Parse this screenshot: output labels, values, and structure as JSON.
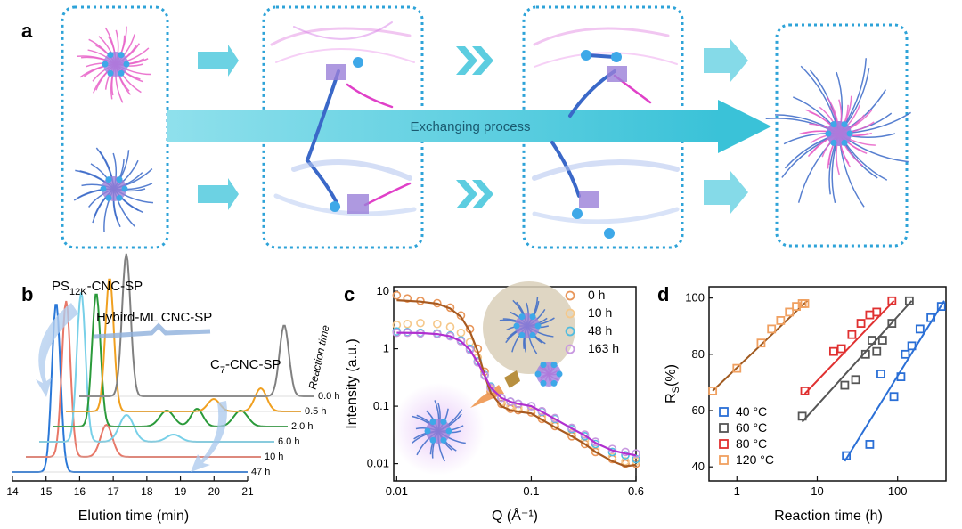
{
  "panel_a": {
    "letter": "a",
    "process_label": "Exchanging process"
  },
  "panel_b": {
    "letter": "b",
    "label_ps": "PS",
    "label_ps_sub": "12K",
    "label_ps_rest": "-CNC-SP",
    "label_hybrid": "Hybird-ML CNC-SP",
    "label_c7": "C",
    "label_c7_sub": "7",
    "label_c7_rest": "-CNC-SP",
    "xlabel": "Elution time (min)",
    "depth_label": "Reaction time",
    "xticks": [
      "14",
      "15",
      "16",
      "17",
      "18",
      "19",
      "20",
      "21"
    ],
    "traces": [
      {
        "time": "0.0 h",
        "color": "#808080"
      },
      {
        "time": "0.5 h",
        "color": "#f0a020"
      },
      {
        "time": "2.0 h",
        "color": "#2a9a3a"
      },
      {
        "time": "6.0 h",
        "color": "#78d0e8"
      },
      {
        "time": "10 h",
        "color": "#e87868"
      },
      {
        "time": "47 h",
        "color": "#2a78d8"
      }
    ]
  },
  "chart_data": [
    {
      "panel": "c",
      "type": "scatter",
      "xlabel": "Q (Å⁻¹)",
      "ylabel": "Intensity (a.u.)",
      "xscale": "log",
      "yscale": "log",
      "xlim": [
        0.0095,
        0.6
      ],
      "ylim": [
        0.005,
        12
      ],
      "xticks": [
        "0.01",
        "0.1",
        "0.6"
      ],
      "yticks": [
        "10",
        "1",
        "0.1",
        "0.01"
      ],
      "legend_position": "top-right",
      "series": [
        {
          "name": "0 h",
          "color": "#e8965a",
          "x": [
            0.01,
            0.012,
            0.015,
            0.02,
            0.025,
            0.03,
            0.035,
            0.04,
            0.045,
            0.05,
            0.06,
            0.07,
            0.08,
            0.1,
            0.12,
            0.15,
            0.2,
            0.25,
            0.3,
            0.4,
            0.5,
            0.6
          ],
          "y": [
            8.5,
            7.5,
            6.8,
            6.2,
            5.2,
            3.8,
            2.2,
            1.0,
            0.4,
            0.18,
            0.11,
            0.09,
            0.085,
            0.078,
            0.06,
            0.045,
            0.03,
            0.022,
            0.016,
            0.012,
            0.01,
            0.01
          ]
        },
        {
          "name": "10 h",
          "color": "#f5c88a",
          "x": [
            0.01,
            0.012,
            0.015,
            0.02,
            0.025,
            0.03,
            0.035,
            0.04,
            0.045,
            0.05,
            0.06,
            0.07,
            0.08,
            0.1,
            0.12,
            0.15,
            0.2,
            0.25,
            0.3,
            0.4,
            0.5,
            0.6
          ],
          "y": [
            2.6,
            2.7,
            2.8,
            2.7,
            2.4,
            1.9,
            1.3,
            0.7,
            0.35,
            0.2,
            0.12,
            0.1,
            0.095,
            0.085,
            0.065,
            0.05,
            0.034,
            0.025,
            0.018,
            0.013,
            0.011,
            0.011
          ]
        },
        {
          "name": "48 h",
          "color": "#50bce0",
          "x": [
            0.01,
            0.012,
            0.015,
            0.02,
            0.025,
            0.03,
            0.035,
            0.04,
            0.045,
            0.05,
            0.06,
            0.07,
            0.08,
            0.1,
            0.12,
            0.15,
            0.2,
            0.25,
            0.3,
            0.4,
            0.5,
            0.6
          ],
          "y": [
            2.0,
            1.95,
            1.9,
            1.85,
            1.7,
            1.4,
            1.0,
            0.6,
            0.35,
            0.22,
            0.14,
            0.12,
            0.11,
            0.1,
            0.08,
            0.06,
            0.04,
            0.03,
            0.022,
            0.016,
            0.014,
            0.012
          ]
        },
        {
          "name": "163 h",
          "color": "#c898e0",
          "x": [
            0.01,
            0.012,
            0.015,
            0.02,
            0.025,
            0.03,
            0.035,
            0.04,
            0.045,
            0.05,
            0.06,
            0.07,
            0.08,
            0.1,
            0.12,
            0.15,
            0.2,
            0.25,
            0.3,
            0.4,
            0.5,
            0.6
          ],
          "y": [
            1.9,
            1.9,
            1.85,
            1.8,
            1.65,
            1.35,
            0.95,
            0.58,
            0.34,
            0.21,
            0.14,
            0.12,
            0.11,
            0.1,
            0.082,
            0.062,
            0.042,
            0.032,
            0.024,
            0.018,
            0.016,
            0.015
          ]
        }
      ],
      "fits": [
        {
          "color": "#a85a20",
          "x": [
            0.01,
            0.015,
            0.02,
            0.025,
            0.03,
            0.035,
            0.04,
            0.045,
            0.05,
            0.06,
            0.07,
            0.08,
            0.1,
            0.12,
            0.15,
            0.2,
            0.25,
            0.3,
            0.4,
            0.5,
            0.6
          ],
          "y": [
            7.0,
            6.6,
            6.1,
            5.0,
            3.6,
            2.0,
            0.9,
            0.35,
            0.17,
            0.1,
            0.085,
            0.08,
            0.075,
            0.058,
            0.043,
            0.03,
            0.022,
            0.016,
            0.011,
            0.009,
            0.0095
          ]
        },
        {
          "color": "#b030d0",
          "x": [
            0.01,
            0.015,
            0.02,
            0.025,
            0.03,
            0.035,
            0.04,
            0.045,
            0.05,
            0.06,
            0.07,
            0.08,
            0.1,
            0.12,
            0.15,
            0.2,
            0.25,
            0.3,
            0.4,
            0.5,
            0.6
          ],
          "y": [
            1.9,
            1.88,
            1.8,
            1.65,
            1.35,
            0.95,
            0.58,
            0.34,
            0.21,
            0.14,
            0.12,
            0.11,
            0.1,
            0.08,
            0.06,
            0.041,
            0.031,
            0.023,
            0.017,
            0.015,
            0.014
          ]
        }
      ]
    },
    {
      "panel": "d",
      "type": "scatter",
      "xlabel": "Reaction time (h)",
      "ylabel": "R",
      "ylabel_sub": "S",
      "ylabel_rest": "(%)",
      "xscale": "log",
      "xlim": [
        0.45,
        400
      ],
      "ylim": [
        35,
        104
      ],
      "xticks": [
        "1",
        "10",
        "100"
      ],
      "yticks": [
        "40",
        "60",
        "80",
        "100"
      ],
      "legend_position": "bottom-left",
      "series": [
        {
          "name": "40 °C",
          "color": "#2a6fd6",
          "line": "#2a6fd6",
          "x": [
            23,
            45,
            62,
            90,
            110,
            125,
            150,
            190,
            260,
            350
          ],
          "y": [
            44,
            48,
            73,
            65,
            72,
            80,
            83,
            89,
            93,
            97
          ],
          "fit_x": [
            22,
            380
          ],
          "fit_y": [
            42,
            99
          ]
        },
        {
          "name": "60 °C",
          "color": "#555555",
          "line": "#555555",
          "x": [
            6.5,
            22,
            30,
            40,
            48,
            55,
            65,
            85,
            140
          ],
          "y": [
            58,
            69,
            71,
            80,
            85,
            81,
            85,
            91,
            99
          ],
          "fit_x": [
            6.5,
            150
          ],
          "fit_y": [
            56,
            99
          ]
        },
        {
          "name": "80 °C",
          "color": "#e03030",
          "line": "#e03030",
          "x": [
            7,
            16,
            20,
            27,
            35,
            45,
            55,
            85
          ],
          "y": [
            67,
            81,
            82,
            87,
            91,
            94,
            95,
            99
          ],
          "fit_x": [
            7,
            90
          ],
          "fit_y": [
            66,
            99
          ]
        },
        {
          "name": "120 °C",
          "color": "#f0a060",
          "line": "#a05a20",
          "x": [
            0.5,
            1.0,
            2.0,
            2.7,
            3.5,
            4.5,
            5.5,
            6.5,
            7.0
          ],
          "y": [
            67,
            75,
            84,
            89,
            92,
            95,
            97,
            98,
            98
          ],
          "fit_x": [
            0.5,
            7.5
          ],
          "fit_y": [
            67,
            99
          ]
        }
      ]
    }
  ],
  "panel_c_letter": "c",
  "panel_d_letter": "d"
}
